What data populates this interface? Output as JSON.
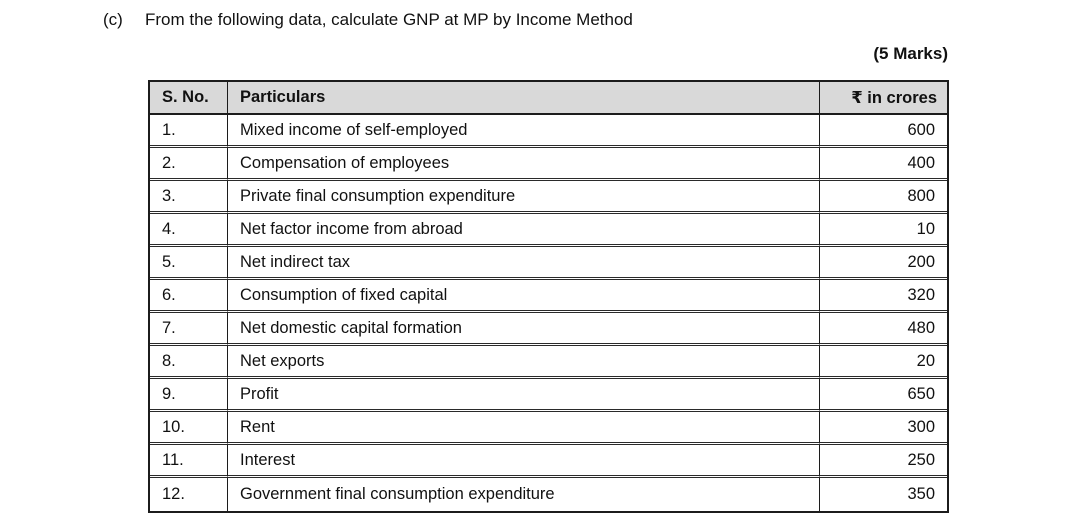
{
  "question": {
    "label": "(c)",
    "text": "From the following data, calculate GNP at MP by Income Method",
    "marks": "(5 Marks)"
  },
  "table": {
    "headers": {
      "sno": "S. No.",
      "particulars": "Particulars",
      "amount": "₹ in crores"
    },
    "rows": [
      {
        "sno": "1.",
        "particulars": "Mixed income of self-employed",
        "amount": "600"
      },
      {
        "sno": "2.",
        "particulars": "Compensation of employees",
        "amount": "400"
      },
      {
        "sno": "3.",
        "particulars": "Private final consumption expenditure",
        "amount": "800"
      },
      {
        "sno": "4.",
        "particulars": "Net factor income from abroad",
        "amount": "10"
      },
      {
        "sno": "5.",
        "particulars": "Net indirect tax",
        "amount": "200"
      },
      {
        "sno": "6.",
        "particulars": "Consumption of fixed capital",
        "amount": "320"
      },
      {
        "sno": "7.",
        "particulars": "Net domestic capital formation",
        "amount": "480"
      },
      {
        "sno": "8.",
        "particulars": "Net exports",
        "amount": "20"
      },
      {
        "sno": "9.",
        "particulars": "Profit",
        "amount": "650"
      },
      {
        "sno": "10.",
        "particulars": "Rent",
        "amount": "300"
      },
      {
        "sno": "11.",
        "particulars": "Interest",
        "amount": "250"
      },
      {
        "sno": "12.",
        "particulars": "Government final consumption expenditure",
        "amount": "350"
      }
    ]
  },
  "colors": {
    "header_bg": "#d9d9d9",
    "border": "#1c1c1c",
    "text": "#111111",
    "page_bg": "#ffffff"
  }
}
